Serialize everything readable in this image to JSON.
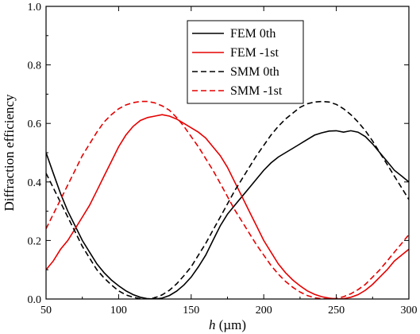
{
  "chart_data": {
    "type": "line",
    "xlabel_var": "h",
    "xlabel_unit": " (µm)",
    "ylabel": "Diffraction efficiency",
    "xlim": [
      50,
      300
    ],
    "ylim": [
      0,
      1.0
    ],
    "xticks": [
      50,
      100,
      150,
      200,
      250,
      300
    ],
    "yticks": [
      0.0,
      0.2,
      0.4,
      0.6,
      0.8,
      1.0
    ],
    "xtick_labels": [
      "50",
      "100",
      "150",
      "200",
      "250",
      "300"
    ],
    "ytick_labels": [
      "0.0",
      "0.2",
      "0.4",
      "0.6",
      "0.8",
      "1.0"
    ],
    "legend_position": "top-center",
    "grid": false,
    "series": [
      {
        "name": "FEM 0th",
        "color": "#000000",
        "dash": "solid",
        "x": [
          50,
          55,
          60,
          65,
          70,
          75,
          80,
          85,
          90,
          95,
          100,
          105,
          110,
          115,
          120,
          125,
          130,
          135,
          140,
          145,
          150,
          155,
          160,
          165,
          170,
          175,
          180,
          185,
          190,
          195,
          200,
          205,
          210,
          215,
          220,
          225,
          230,
          235,
          240,
          245,
          250,
          255,
          260,
          265,
          270,
          275,
          280,
          285,
          290,
          295,
          300
        ],
        "y": [
          0.5,
          0.43,
          0.36,
          0.3,
          0.25,
          0.2,
          0.16,
          0.12,
          0.09,
          0.065,
          0.045,
          0.028,
          0.015,
          0.006,
          0.001,
          0.0,
          0.003,
          0.012,
          0.027,
          0.048,
          0.075,
          0.11,
          0.15,
          0.2,
          0.25,
          0.29,
          0.32,
          0.35,
          0.38,
          0.41,
          0.44,
          0.465,
          0.485,
          0.5,
          0.515,
          0.53,
          0.545,
          0.56,
          0.568,
          0.574,
          0.575,
          0.57,
          0.575,
          0.57,
          0.555,
          0.53,
          0.5,
          0.47,
          0.44,
          0.42,
          0.4
        ]
      },
      {
        "name": "FEM -1st",
        "color": "#e60000",
        "dash": "solid",
        "x": [
          50,
          55,
          60,
          65,
          70,
          75,
          80,
          85,
          90,
          95,
          100,
          105,
          110,
          115,
          120,
          125,
          130,
          135,
          140,
          145,
          150,
          155,
          160,
          165,
          170,
          175,
          180,
          185,
          190,
          195,
          200,
          205,
          210,
          215,
          220,
          225,
          230,
          235,
          240,
          245,
          250,
          255,
          260,
          265,
          270,
          275,
          280,
          285,
          290,
          295,
          300
        ],
        "y": [
          0.1,
          0.13,
          0.17,
          0.2,
          0.24,
          0.28,
          0.32,
          0.37,
          0.42,
          0.47,
          0.52,
          0.56,
          0.59,
          0.61,
          0.62,
          0.625,
          0.63,
          0.625,
          0.615,
          0.6,
          0.585,
          0.57,
          0.55,
          0.52,
          0.49,
          0.45,
          0.4,
          0.35,
          0.3,
          0.25,
          0.2,
          0.16,
          0.12,
          0.09,
          0.065,
          0.045,
          0.028,
          0.016,
          0.008,
          0.003,
          0.0,
          0.001,
          0.006,
          0.015,
          0.03,
          0.05,
          0.075,
          0.1,
          0.13,
          0.15,
          0.17
        ]
      },
      {
        "name": "SMM 0th",
        "color": "#000000",
        "dash": "dashed",
        "x": [
          50,
          55,
          60,
          65,
          70,
          75,
          80,
          85,
          90,
          95,
          100,
          105,
          110,
          115,
          120,
          125,
          130,
          135,
          140,
          145,
          150,
          155,
          160,
          165,
          170,
          175,
          180,
          185,
          190,
          195,
          200,
          205,
          210,
          215,
          220,
          225,
          230,
          235,
          240,
          245,
          250,
          255,
          260,
          265,
          270,
          275,
          280,
          285,
          290,
          295,
          300
        ],
        "y": [
          0.43,
          0.38,
          0.33,
          0.28,
          0.23,
          0.18,
          0.14,
          0.1,
          0.072,
          0.048,
          0.028,
          0.014,
          0.006,
          0.001,
          0.0,
          0.004,
          0.014,
          0.03,
          0.052,
          0.08,
          0.11,
          0.15,
          0.19,
          0.235,
          0.28,
          0.325,
          0.37,
          0.41,
          0.45,
          0.49,
          0.525,
          0.56,
          0.59,
          0.615,
          0.635,
          0.655,
          0.667,
          0.673,
          0.675,
          0.673,
          0.665,
          0.65,
          0.63,
          0.605,
          0.575,
          0.54,
          0.5,
          0.46,
          0.42,
          0.38,
          0.34
        ]
      },
      {
        "name": "SMM -1st",
        "color": "#e60000",
        "dash": "dashed",
        "x": [
          50,
          55,
          60,
          65,
          70,
          75,
          80,
          85,
          90,
          95,
          100,
          105,
          110,
          115,
          120,
          125,
          130,
          135,
          140,
          145,
          150,
          155,
          160,
          165,
          170,
          175,
          180,
          185,
          190,
          195,
          200,
          205,
          210,
          215,
          220,
          225,
          230,
          235,
          240,
          245,
          250,
          255,
          260,
          265,
          270,
          275,
          280,
          285,
          290,
          295,
          300
        ],
        "y": [
          0.24,
          0.29,
          0.34,
          0.39,
          0.44,
          0.49,
          0.53,
          0.57,
          0.605,
          0.63,
          0.65,
          0.663,
          0.671,
          0.675,
          0.675,
          0.67,
          0.66,
          0.645,
          0.62,
          0.59,
          0.555,
          0.52,
          0.48,
          0.44,
          0.395,
          0.35,
          0.305,
          0.265,
          0.225,
          0.185,
          0.15,
          0.115,
          0.085,
          0.06,
          0.04,
          0.024,
          0.012,
          0.004,
          0.001,
          0.0,
          0.002,
          0.008,
          0.018,
          0.032,
          0.05,
          0.075,
          0.1,
          0.13,
          0.16,
          0.19,
          0.22
        ]
      }
    ]
  }
}
